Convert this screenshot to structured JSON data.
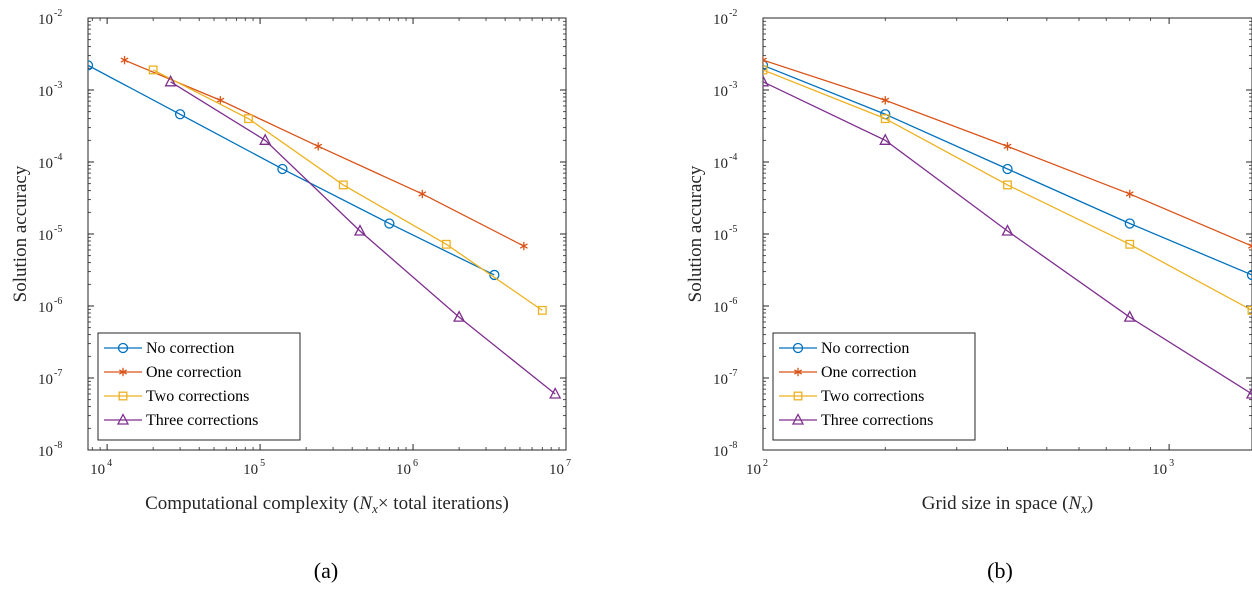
{
  "chart_data": [
    {
      "type": "line",
      "subfigure_label": "(a)",
      "xscale": "log",
      "yscale": "log",
      "xlim": [
        7500,
        10000000
      ],
      "ylim": [
        1e-08,
        0.01
      ],
      "xlabel": "Computational complexity (Nx× total iterations)",
      "xlabel_parts": {
        "pre": "Computational complexity (",
        "var": "N",
        "sub": "x",
        "post": "× total iterations)"
      },
      "ylabel": "Solution accuracy",
      "x_ticks": [
        {
          "value": 10000,
          "base": "10",
          "exp": "4"
        },
        {
          "value": 100000,
          "base": "10",
          "exp": "5"
        },
        {
          "value": 1000000,
          "base": "10",
          "exp": "6"
        },
        {
          "value": 10000000,
          "base": "10",
          "exp": "7"
        }
      ],
      "y_ticks": [
        {
          "value": 0.01,
          "base": "10",
          "exp": "-2"
        },
        {
          "value": 0.001,
          "base": "10",
          "exp": "-3"
        },
        {
          "value": 0.0001,
          "base": "10",
          "exp": "-4"
        },
        {
          "value": 1e-05,
          "base": "10",
          "exp": "-5"
        },
        {
          "value": 1e-06,
          "base": "10",
          "exp": "-6"
        },
        {
          "value": 1e-07,
          "base": "10",
          "exp": "-7"
        },
        {
          "value": 1e-08,
          "base": "10",
          "exp": "-8"
        }
      ],
      "legend_position": "bottom-left",
      "series": [
        {
          "name": "No correction",
          "color": "#0072BD",
          "marker": "circle",
          "x": [
            7500,
            30000,
            140000,
            700000,
            3400000
          ],
          "y": [
            0.0022,
            0.00046,
            8e-05,
            1.4e-05,
            2.7e-06
          ]
        },
        {
          "name": "One correction",
          "color": "#D95319",
          "marker": "asterisk",
          "x": [
            13000,
            55000,
            240000,
            1150000,
            5300000
          ],
          "y": [
            0.0026,
            0.00072,
            0.000165,
            3.6e-05,
            6.8e-06
          ]
        },
        {
          "name": "Two corrections",
          "color": "#EDB120",
          "marker": "square",
          "x": [
            20000,
            84000,
            350000,
            1650000,
            7000000
          ],
          "y": [
            0.0019,
            0.0004,
            4.8e-05,
            7.2e-06,
            8.7e-07
          ]
        },
        {
          "name": "Three corrections",
          "color": "#7E2F8E",
          "marker": "triangle",
          "x": [
            26000,
            108000,
            450000,
            2000000,
            8500000
          ],
          "y": [
            0.0013,
            0.0002,
            1.1e-05,
            7e-07,
            6e-08
          ]
        }
      ]
    },
    {
      "type": "line",
      "subfigure_label": "(b)",
      "xscale": "log",
      "yscale": "log",
      "xlim": [
        100,
        1600
      ],
      "ylim": [
        1e-08,
        0.01
      ],
      "xlabel": "Grid size in space (Nx)",
      "xlabel_parts": {
        "pre": "Grid size in space (",
        "var": "N",
        "sub": "x",
        "post": ")"
      },
      "ylabel": "Solution accuracy",
      "x_ticks": [
        {
          "value": 100,
          "base": "10",
          "exp": "2"
        },
        {
          "value": 1000,
          "base": "10",
          "exp": "3"
        }
      ],
      "y_ticks": [
        {
          "value": 0.01,
          "base": "10",
          "exp": "-2"
        },
        {
          "value": 0.001,
          "base": "10",
          "exp": "-3"
        },
        {
          "value": 0.0001,
          "base": "10",
          "exp": "-4"
        },
        {
          "value": 1e-05,
          "base": "10",
          "exp": "-5"
        },
        {
          "value": 1e-06,
          "base": "10",
          "exp": "-6"
        },
        {
          "value": 1e-07,
          "base": "10",
          "exp": "-7"
        },
        {
          "value": 1e-08,
          "base": "10",
          "exp": "-8"
        }
      ],
      "legend_position": "bottom-left",
      "series": [
        {
          "name": "No correction",
          "color": "#0072BD",
          "marker": "circle",
          "x": [
            100,
            200,
            400,
            800,
            1600
          ],
          "y": [
            0.0022,
            0.00046,
            8e-05,
            1.4e-05,
            2.7e-06
          ]
        },
        {
          "name": "One correction",
          "color": "#D95319",
          "marker": "asterisk",
          "x": [
            100,
            200,
            400,
            800,
            1600
          ],
          "y": [
            0.0026,
            0.00072,
            0.000165,
            3.6e-05,
            6.8e-06
          ]
        },
        {
          "name": "Two corrections",
          "color": "#EDB120",
          "marker": "square",
          "x": [
            100,
            200,
            400,
            800,
            1600
          ],
          "y": [
            0.0019,
            0.0004,
            4.8e-05,
            7.2e-06,
            8.7e-07
          ]
        },
        {
          "name": "Three corrections",
          "color": "#7E2F8E",
          "marker": "triangle",
          "x": [
            100,
            200,
            400,
            800,
            1600
          ],
          "y": [
            0.0013,
            0.0002,
            1.1e-05,
            7e-07,
            6e-08
          ]
        }
      ]
    }
  ]
}
